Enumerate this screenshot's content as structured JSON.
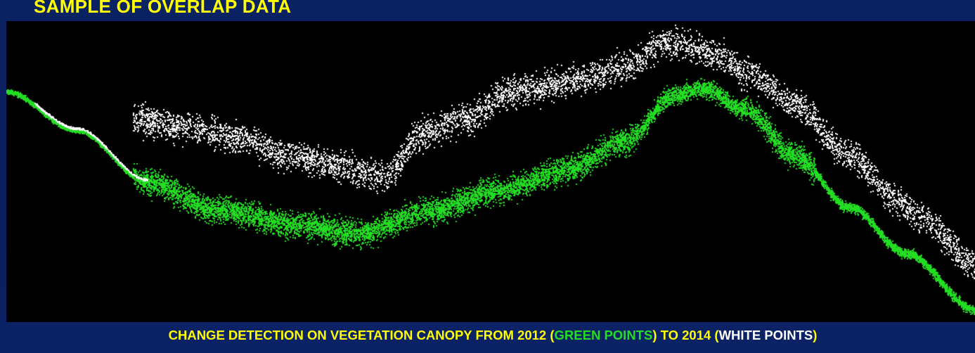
{
  "title": "SAMPLE OF OVERLAP DATA",
  "caption": {
    "part1": "CHANGE DETECTION ON VEGETATION CANOPY FROM 2012 (",
    "green_label": "GREEN POINTS",
    "part2": ") TO 2014 (",
    "white_label": "WHITE POINTS",
    "part3": ")"
  },
  "colors": {
    "title": "#ffff00",
    "caption": "#ffff00",
    "points_2012": "#22dd22",
    "points_2014": "#ffffff",
    "plot_background": "#000000",
    "frame": "#0a1f5c"
  },
  "point_cloud": {
    "series": [
      {
        "year": "2012",
        "color_name": "green"
      },
      {
        "year": "2014",
        "color_name": "white"
      }
    ]
  }
}
